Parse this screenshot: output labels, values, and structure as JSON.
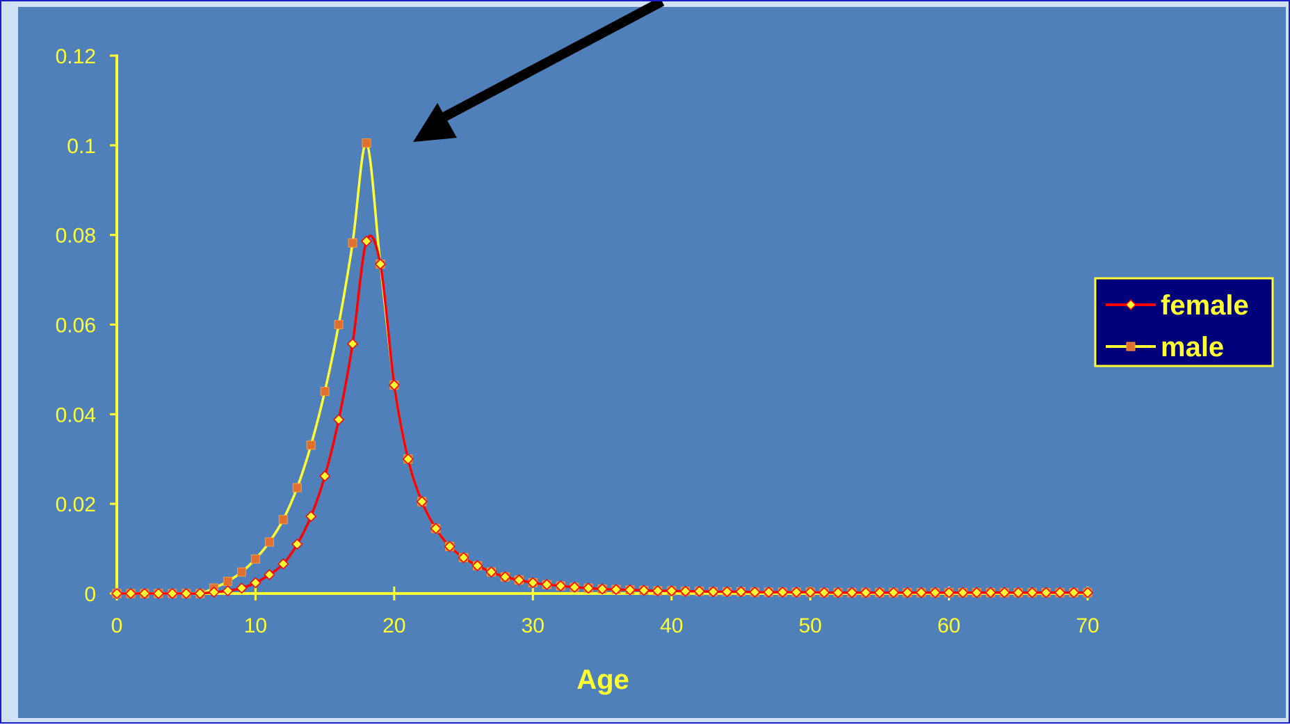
{
  "chart_data": {
    "type": "line",
    "title": "",
    "xlabel": "Age",
    "ylabel": "",
    "xlim": [
      0,
      70
    ],
    "ylim": [
      0,
      0.12
    ],
    "x_ticks": [
      "0",
      "10",
      "20",
      "30",
      "40",
      "50",
      "60",
      "70"
    ],
    "y_ticks": [
      "0",
      "0.02",
      "0.04",
      "0.06",
      "0.08",
      "0.1",
      "0.12"
    ],
    "grid": false,
    "legend_position": "right",
    "x": [
      0,
      1,
      2,
      3,
      4,
      5,
      6,
      7,
      8,
      9,
      10,
      11,
      12,
      13,
      14,
      15,
      16,
      17,
      18,
      19,
      20,
      21,
      22,
      23,
      24,
      25,
      26,
      27,
      28,
      29,
      30,
      31,
      32,
      33,
      34,
      35,
      36,
      37,
      38,
      39,
      40,
      41,
      42,
      43,
      44,
      45,
      46,
      47,
      48,
      49,
      50,
      51,
      52,
      53,
      54,
      55,
      56,
      57,
      58,
      59,
      60,
      61,
      62,
      63,
      64,
      65,
      66,
      67,
      68,
      69,
      70
    ],
    "series": [
      {
        "name": "female",
        "color": "#ff0000",
        "marker": "diamond",
        "marker_color": "#ffff33",
        "values": [
          0,
          0,
          0,
          0,
          0,
          0,
          0,
          0.0003,
          0.0006,
          0.0012,
          0.0024,
          0.0042,
          0.0066,
          0.011,
          0.0172,
          0.0262,
          0.0388,
          0.0557,
          0.0786,
          0.0735,
          0.0465,
          0.03,
          0.0205,
          0.0145,
          0.0105,
          0.008,
          0.0062,
          0.0048,
          0.0037,
          0.003,
          0.0024,
          0.002,
          0.0017,
          0.0014,
          0.0012,
          0.001,
          0.0009,
          0.0008,
          0.0007,
          0.0006,
          0.0006,
          0.0005,
          0.0005,
          0.0004,
          0.0004,
          0.0004,
          0.0003,
          0.0003,
          0.0003,
          0.0003,
          0.0003,
          0.0002,
          0.0002,
          0.0002,
          0.0002,
          0.0002,
          0.0002,
          0.0002,
          0.0002,
          0.0002,
          0.0002,
          0.0002,
          0.0002,
          0.0002,
          0.0002,
          0.0002,
          0.0002,
          0.0002,
          0.0002,
          0.0002,
          0.0002
        ]
      },
      {
        "name": "male",
        "color": "#ffff33",
        "marker": "square",
        "marker_color": "#e07030",
        "values": [
          0,
          0,
          0,
          0,
          0,
          0,
          0,
          0.0012,
          0.0027,
          0.0048,
          0.0077,
          0.0115,
          0.0165,
          0.0236,
          0.0331,
          0.0451,
          0.06,
          0.0782,
          0.1005,
          0.0735,
          0.0465,
          0.03,
          0.0205,
          0.0145,
          0.0105,
          0.008,
          0.0062,
          0.0048,
          0.0037,
          0.003,
          0.0024,
          0.002,
          0.0017,
          0.0014,
          0.0012,
          0.001,
          0.0009,
          0.0008,
          0.0007,
          0.0006,
          0.0006,
          0.0005,
          0.0005,
          0.0004,
          0.0004,
          0.0004,
          0.0003,
          0.0003,
          0.0003,
          0.0003,
          0.0003,
          0.0002,
          0.0002,
          0.0002,
          0.0002,
          0.0002,
          0.0002,
          0.0002,
          0.0002,
          0.0002,
          0.0002,
          0.0002,
          0.0002,
          0.0002,
          0.0002,
          0.0002,
          0.0002,
          0.0002,
          0.0002,
          0.0002,
          0.0002
        ]
      }
    ]
  },
  "colors": {
    "plot_background": "#4f80ba",
    "frame_border": "#1a1acc",
    "frame_background": "#cfe0f2",
    "axis": "#ffff33",
    "text": "#ffff33",
    "legend_background": "#00007a",
    "arrow": "#000000"
  },
  "annotations": [
    {
      "type": "arrow",
      "points_to": "male peak at age 18"
    }
  ]
}
